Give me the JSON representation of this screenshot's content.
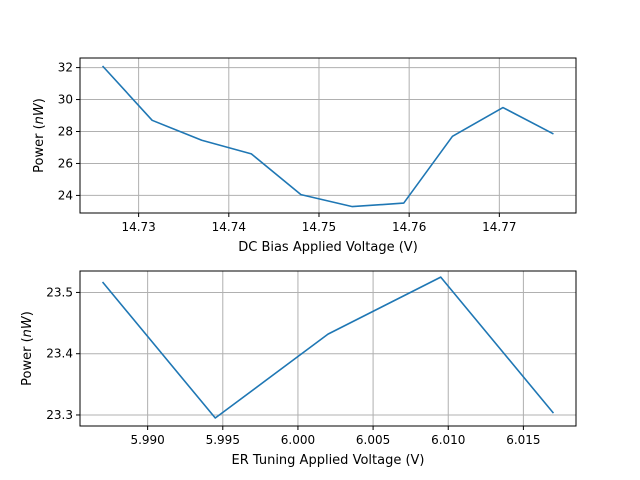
{
  "chart_data": [
    {
      "type": "line",
      "title": "",
      "xlabel": "DC Bias Applied Voltage (V)",
      "ylabel": "Power",
      "ylabel_unit": "nW",
      "xlim": [
        14.7235,
        14.7785
      ],
      "ylim": [
        22.9,
        32.6
      ],
      "xticks": [
        14.73,
        14.74,
        14.75,
        14.76,
        14.77
      ],
      "xtick_labels": [
        "14.73",
        "14.74",
        "14.75",
        "14.76",
        "14.77"
      ],
      "yticks": [
        24,
        26,
        28,
        30,
        32
      ],
      "ytick_labels": [
        "24",
        "26",
        "28",
        "30",
        "32"
      ],
      "grid": true,
      "series": [
        {
          "color": "#1f77b4",
          "x": [
            14.726,
            14.7315,
            14.737,
            14.7425,
            14.748,
            14.7537,
            14.7594,
            14.7648,
            14.7704,
            14.776
          ],
          "y": [
            32.1,
            28.7,
            27.45,
            26.6,
            24.05,
            23.3,
            23.52,
            27.7,
            29.5,
            27.85
          ]
        }
      ]
    },
    {
      "type": "line",
      "title": "",
      "xlabel": "ER Tuning Applied Voltage (V)",
      "ylabel": "Power",
      "ylabel_unit": "nW",
      "xlim": [
        5.9855,
        6.0185
      ],
      "ylim": [
        23.282,
        23.535
      ],
      "xticks": [
        5.99,
        5.995,
        6.0,
        6.005,
        6.01,
        6.015
      ],
      "xtick_labels": [
        "5.990",
        "5.995",
        "6.000",
        "6.005",
        "6.010",
        "6.015"
      ],
      "yticks": [
        23.3,
        23.4,
        23.5
      ],
      "ytick_labels": [
        "23.3",
        "23.4",
        "23.5"
      ],
      "grid": true,
      "series": [
        {
          "color": "#1f77b4",
          "x": [
            5.987,
            5.9945,
            6.002,
            6.0095,
            6.017
          ],
          "y": [
            23.517,
            23.295,
            23.432,
            23.525,
            23.303
          ]
        }
      ]
    }
  ]
}
